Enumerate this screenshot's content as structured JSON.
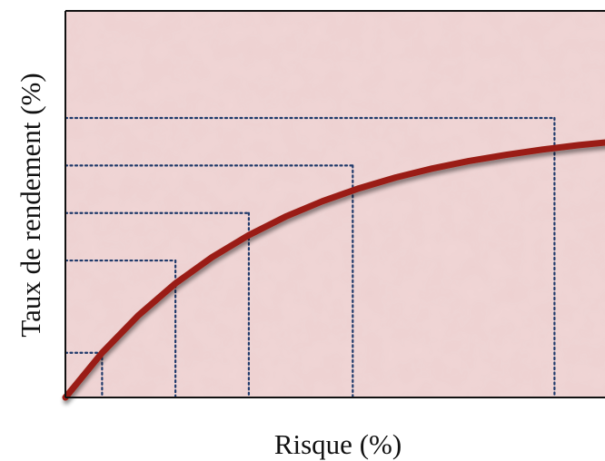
{
  "chart_data": {
    "type": "line",
    "title": "",
    "xlabel": "Risque (%)",
    "ylabel": "Taux de rendement (%)",
    "xlim": [
      0,
      100
    ],
    "ylim": [
      0,
      100
    ],
    "grid": false,
    "legend": "none",
    "tick_labels_shown": false,
    "series": [
      {
        "x": [
          0,
          6,
          12,
          18,
          24,
          30,
          36,
          42,
          48,
          54,
          60,
          66,
          72,
          78,
          84,
          90,
          96,
          100
        ],
        "y": [
          0,
          16.0,
          29.5,
          40.8,
          50.2,
          58.1,
          64.7,
          70.2,
          74.8,
          78.7,
          81.9,
          84.6,
          86.8,
          88.7,
          90.3,
          91.6,
          92.7,
          93.3
        ]
      }
    ],
    "reference_points": [
      {
        "x": 6,
        "y": 16
      },
      {
        "x": 18,
        "y": 49
      },
      {
        "x": 30,
        "y": 66
      },
      {
        "x": 47,
        "y": 83
      },
      {
        "x": 80,
        "y": 100
      }
    ],
    "colors": {
      "curve": "#9a1d12",
      "guides": "#1f3a6b",
      "plot_background": "#f1d6d6",
      "frame": "#111111"
    }
  }
}
